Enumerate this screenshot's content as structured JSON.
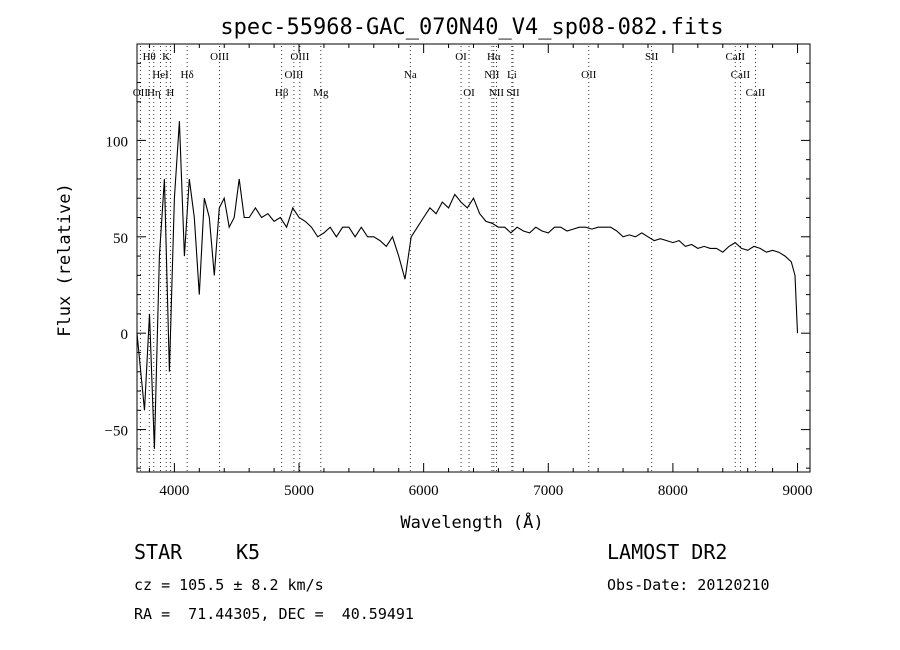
{
  "chart_data": {
    "type": "line",
    "title": "spec-55968-GAC_070N40_V4_sp08-082.fits",
    "xlabel": "Wavelength (Å)",
    "ylabel": "Flux (relative)",
    "xlim": [
      3700,
      9100
    ],
    "ylim": [
      -72,
      150
    ],
    "x_ticks": [
      4000,
      5000,
      6000,
      7000,
      8000,
      9000
    ],
    "y_ticks": [
      -50,
      0,
      50,
      100
    ],
    "grid": false,
    "line_color": "#000000",
    "series": [
      {
        "x": [
          3700,
          3760,
          3800,
          3840,
          3880,
          3920,
          3960,
          4000,
          4040,
          4080,
          4120,
          4160,
          4200,
          4240,
          4280,
          4320,
          4360,
          4400,
          4440,
          4480,
          4520,
          4560,
          4600,
          4650,
          4700,
          4750,
          4800,
          4850,
          4900,
          4950,
          5000,
          5050,
          5100,
          5150,
          5200,
          5250,
          5300,
          5350,
          5400,
          5450,
          5500,
          5550,
          5600,
          5650,
          5700,
          5750,
          5800,
          5850,
          5900,
          5950,
          6000,
          6050,
          6100,
          6150,
          6200,
          6250,
          6300,
          6350,
          6400,
          6450,
          6500,
          6550,
          6600,
          6650,
          6700,
          6750,
          6800,
          6850,
          6900,
          6950,
          7000,
          7050,
          7100,
          7150,
          7200,
          7250,
          7300,
          7350,
          7400,
          7450,
          7500,
          7550,
          7600,
          7650,
          7700,
          7750,
          7800,
          7850,
          7900,
          7950,
          8000,
          8050,
          8100,
          8150,
          8200,
          8250,
          8300,
          8350,
          8400,
          8450,
          8500,
          8550,
          8600,
          8650,
          8700,
          8750,
          8800,
          8850,
          8900,
          8950,
          8980,
          9000
        ],
        "y": [
          0,
          -40,
          10,
          -60,
          40,
          80,
          -20,
          70,
          110,
          40,
          80,
          60,
          20,
          70,
          60,
          30,
          65,
          70,
          55,
          60,
          80,
          60,
          60,
          65,
          60,
          62,
          58,
          60,
          55,
          65,
          60,
          58,
          55,
          50,
          52,
          55,
          50,
          55,
          55,
          50,
          55,
          50,
          50,
          48,
          45,
          50,
          40,
          28,
          50,
          55,
          60,
          65,
          62,
          68,
          65,
          72,
          68,
          65,
          70,
          62,
          58,
          57,
          55,
          55,
          52,
          55,
          53,
          52,
          55,
          53,
          52,
          55,
          55,
          53,
          54,
          55,
          55,
          54,
          55,
          55,
          55,
          53,
          50,
          51,
          50,
          52,
          50,
          48,
          49,
          48,
          47,
          48,
          45,
          46,
          44,
          45,
          44,
          44,
          42,
          45,
          47,
          44,
          43,
          45,
          44,
          42,
          43,
          42,
          40,
          37,
          30,
          0
        ]
      }
    ],
    "line_ids": [
      {
        "label": "Hθ",
        "wl": 3798,
        "row": 0
      },
      {
        "label": "K",
        "wl": 3934,
        "row": 0
      },
      {
        "label": "OIII",
        "wl": 4363,
        "row": 0
      },
      {
        "label": "OIII",
        "wl": 5007,
        "row": 0
      },
      {
        "label": "OI",
        "wl": 6300,
        "row": 0
      },
      {
        "label": "Hα",
        "wl": 6563,
        "row": 0
      },
      {
        "label": "SII",
        "wl": 7830,
        "row": 0
      },
      {
        "label": "CaII",
        "wl": 8500,
        "row": 0
      },
      {
        "label": "HeI",
        "wl": 3889,
        "row": 1
      },
      {
        "label": "Hδ",
        "wl": 4102,
        "row": 1
      },
      {
        "label": "OIII",
        "wl": 4959,
        "row": 1
      },
      {
        "label": "Na",
        "wl": 5893,
        "row": 1
      },
      {
        "label": "NII",
        "wl": 6548,
        "row": 1
      },
      {
        "label": "Li",
        "wl": 6708,
        "row": 1
      },
      {
        "label": "OII",
        "wl": 7325,
        "row": 1
      },
      {
        "label": "CaII",
        "wl": 8542,
        "row": 1
      },
      {
        "label": "OII",
        "wl": 3727,
        "row": 2
      },
      {
        "label": "Hη",
        "wl": 3835,
        "row": 2
      },
      {
        "label": "H",
        "wl": 3968,
        "row": 2
      },
      {
        "label": "Hβ",
        "wl": 4861,
        "row": 2
      },
      {
        "label": "Mg",
        "wl": 5175,
        "row": 2
      },
      {
        "label": "OI",
        "wl": 6364,
        "row": 2
      },
      {
        "label": "NII",
        "wl": 6584,
        "row": 2
      },
      {
        "label": "SII",
        "wl": 6717,
        "row": 2
      },
      {
        "label": "CaII",
        "wl": 8662,
        "row": 2
      }
    ]
  },
  "info": {
    "type_label": "STAR",
    "subclass": "K5",
    "survey": "LAMOST DR2",
    "cz": "cz = 105.5 ± 8.2 km/s",
    "obs_date": "Obs-Date: 20120210",
    "coords": "RA =  71.44305, DEC =  40.59491"
  }
}
